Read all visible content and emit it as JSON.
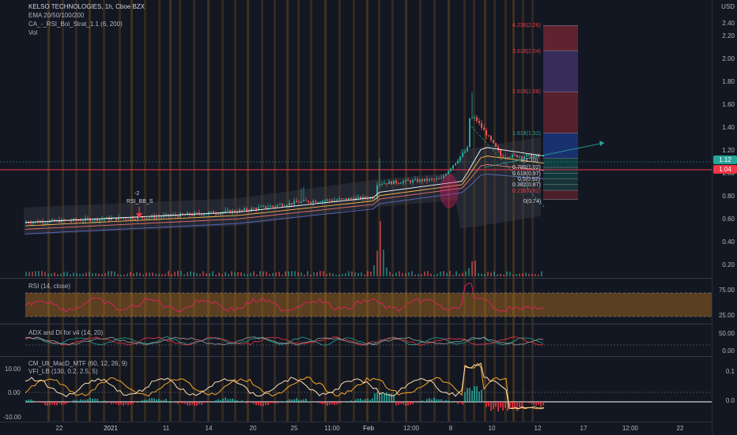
{
  "symbol": {
    "title": "KELSO TECHNOLOGIES, 1h, Cboe BZX",
    "indicators": [
      "EMA 20/50/100/200",
      "CA_-_RSI_Bol_Strat_1.1 (6, 200)",
      "Vol"
    ]
  },
  "currency": "USD",
  "price_axis": [
    "2.40",
    "2.20",
    "2.00",
    "1.80",
    "1.60",
    "1.40",
    "1.20",
    "1.00",
    "0.80",
    "0.60",
    "0.40",
    "0.20"
  ],
  "current_price": {
    "value": "1.12",
    "color": "#26a69a"
  },
  "hline_price": {
    "value": "1.04",
    "color": "#f23645"
  },
  "fib_levels": [
    {
      "label": "4.236(2.26)",
      "color": "#f23645"
    },
    {
      "label": "3.618(2.04)",
      "color": "#f23645"
    },
    {
      "label": "2.618(1.68)",
      "color": "#f23645"
    },
    {
      "label": "1.618(1.32)",
      "color": "#26a69a"
    },
    {
      "label": "1(1.10)",
      "color": "#d1d4dc"
    },
    {
      "label": "0.786(1.02)",
      "color": "#d1d4dc"
    },
    {
      "label": "0.618(0.97)",
      "color": "#d1d4dc"
    },
    {
      "label": "0.5(0.92)",
      "color": "#d1d4dc"
    },
    {
      "label": "0.382(0.87)",
      "color": "#d1d4dc"
    },
    {
      "label": "0.236(0.82)",
      "color": "#f23645"
    },
    {
      "label": "0(0.74)",
      "color": "#d1d4dc"
    }
  ],
  "signal": {
    "count": "-2",
    "label": "RSI_BB_S"
  },
  "rsi_pane": {
    "title": "RSI (14, close)",
    "axis": [
      "75.00",
      "25.00"
    ]
  },
  "adx_pane": {
    "title": "ADX and DI for v4 (14, 20)",
    "axis": [
      "50.00",
      "0.00"
    ]
  },
  "macd_pane": {
    "titles": [
      "CM_Ult_MacD_MTF (60, 12, 26, 9)",
      "VFI_LB (130, 0.2, 2.5, 5)"
    ],
    "left_axis": [
      "10.00",
      "0.00",
      "-10.00"
    ],
    "right_axis": [
      "0.1",
      "0.0"
    ]
  },
  "time_axis": [
    "22",
    "2021",
    "11",
    "14",
    "20",
    "25",
    "11:00",
    "Feb",
    "12:00",
    "8",
    "10",
    "12",
    "17",
    "12:00",
    "22"
  ]
}
